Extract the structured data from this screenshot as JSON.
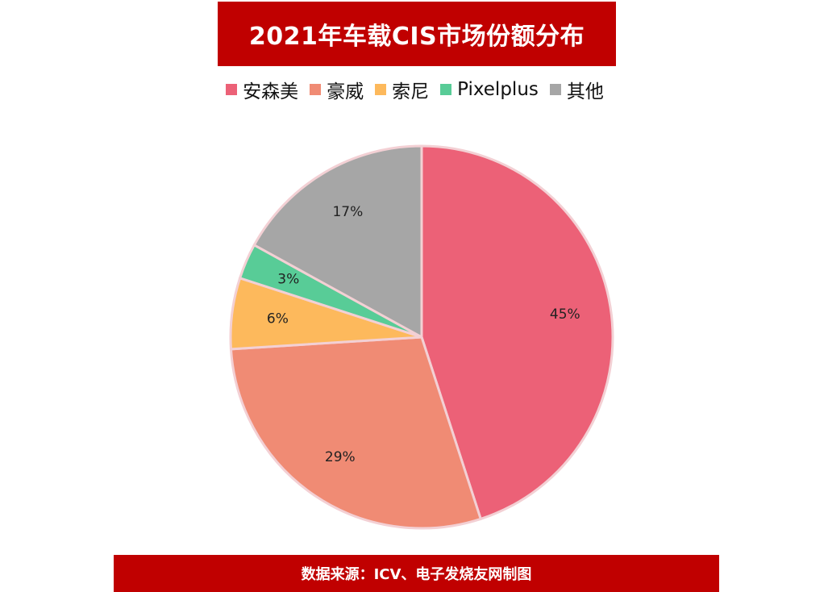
{
  "header": {
    "title": "2021年车载CIS市场份额分布"
  },
  "chart_data": {
    "type": "pie",
    "title": "2021年车载CIS市场份额分布",
    "legend_position": "top",
    "categories": [
      "安森美",
      "豪威",
      "索尼",
      "Pixelplus",
      "其他"
    ],
    "values": [
      45,
      29,
      6,
      3,
      17
    ],
    "labels": [
      "45%",
      "29%",
      "6%",
      "3%",
      "17%"
    ],
    "colors": [
      "#ec6177",
      "#f08b74",
      "#fdb95c",
      "#58cc97",
      "#a6a6a6"
    ],
    "border_color": "#f3d0d4"
  },
  "footer": {
    "source": "数据来源：ICV、电子发烧友网制图"
  }
}
